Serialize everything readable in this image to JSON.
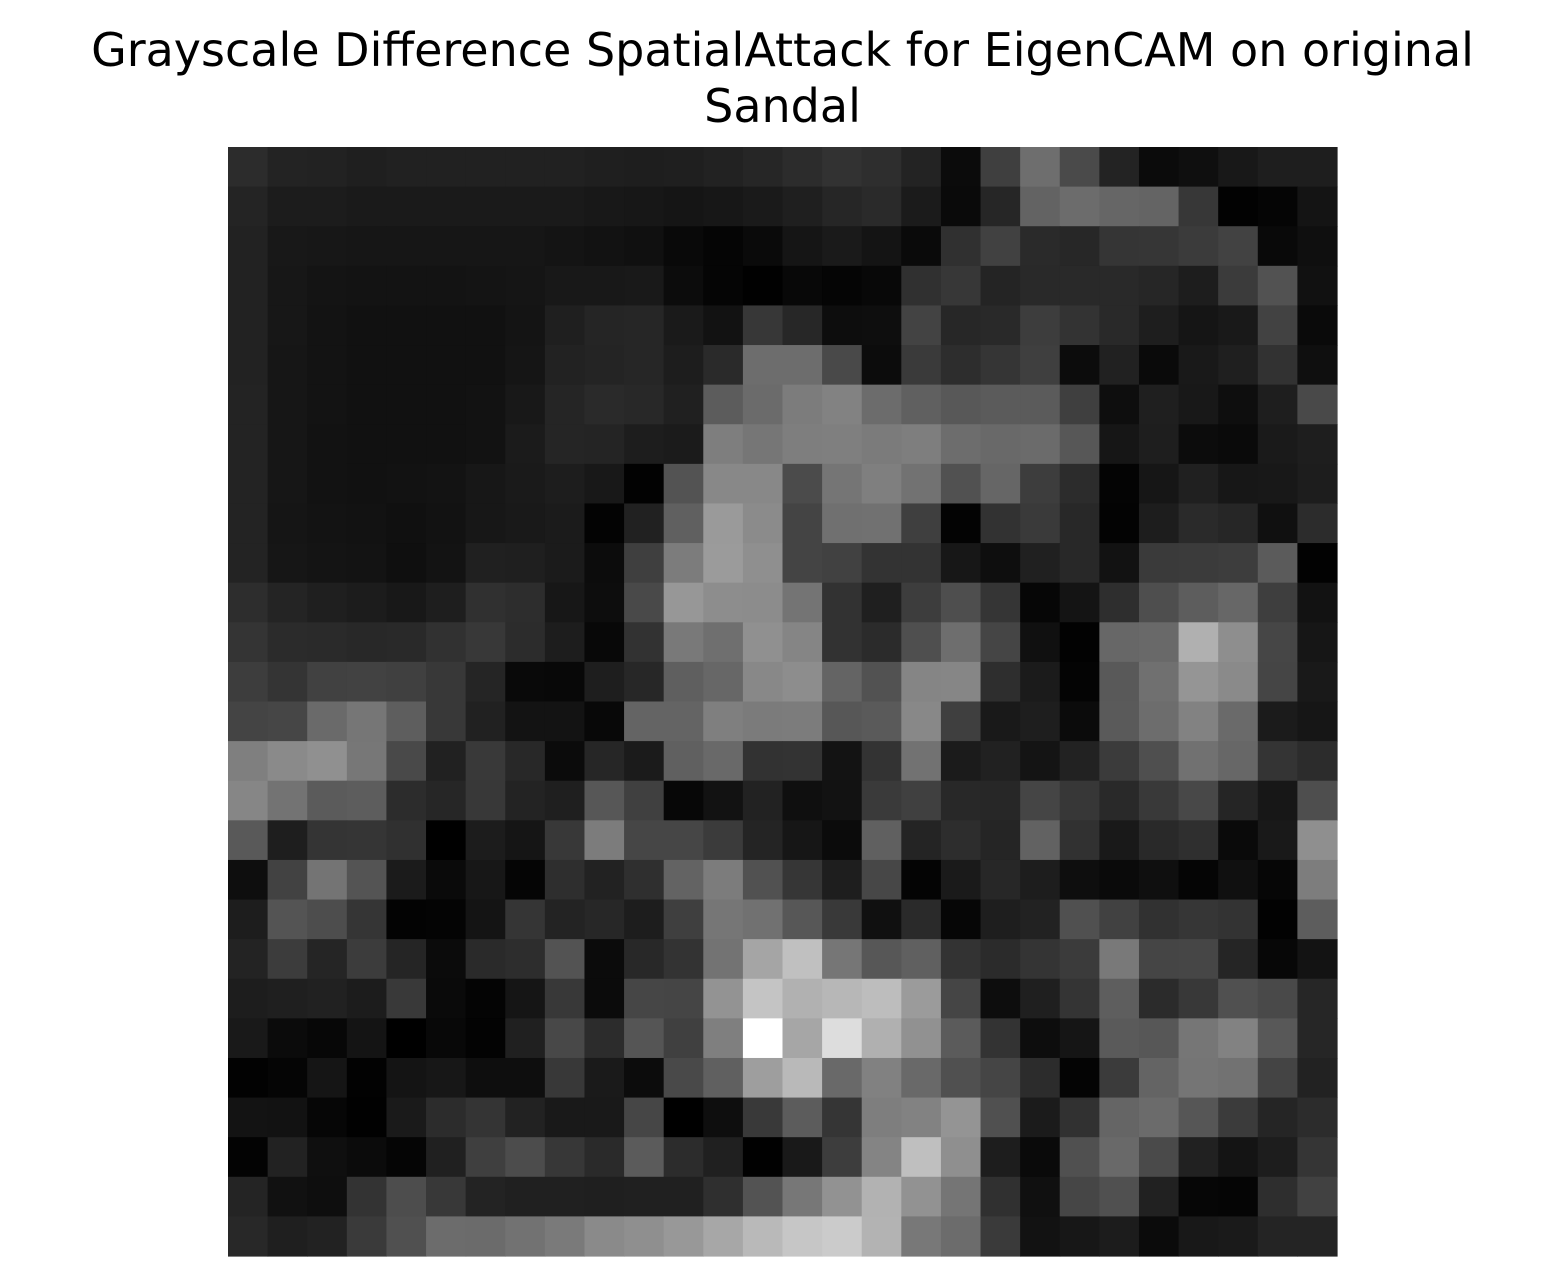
{
  "chart_data": {
    "type": "heatmap",
    "title_line1": "Grayscale Difference SpatialAttack for EigenCAM on original",
    "title_line2": "Sandal",
    "colormap": "gray",
    "axes": "off",
    "rows": 28,
    "cols": 28,
    "values": [
      [
        44,
        35,
        34,
        31,
        33,
        33,
        33,
        33,
        33,
        31,
        30,
        31,
        34,
        38,
        44,
        50,
        46,
        35,
        11,
        63,
        110,
        74,
        35,
        11,
        15,
        24,
        30,
        30
      ],
      [
        36,
        28,
        28,
        26,
        26,
        26,
        26,
        26,
        26,
        24,
        23,
        21,
        23,
        26,
        31,
        38,
        42,
        27,
        10,
        38,
        99,
        108,
        102,
        100,
        55,
        2,
        5,
        20
      ],
      [
        34,
        24,
        23,
        22,
        22,
        22,
        22,
        22,
        20,
        18,
        16,
        9,
        5,
        10,
        21,
        26,
        20,
        10,
        48,
        65,
        42,
        39,
        53,
        54,
        59,
        66,
        9,
        15
      ],
      [
        34,
        23,
        20,
        19,
        19,
        19,
        20,
        21,
        24,
        24,
        25,
        12,
        5,
        1,
        8,
        5,
        8,
        48,
        55,
        36,
        41,
        41,
        41,
        38,
        29,
        59,
        82,
        17
      ],
      [
        34,
        23,
        19,
        17,
        17,
        17,
        17,
        20,
        31,
        37,
        38,
        26,
        18,
        55,
        39,
        13,
        14,
        67,
        39,
        41,
        61,
        51,
        41,
        30,
        21,
        25,
        66,
        10
      ],
      [
        34,
        22,
        19,
        17,
        17,
        17,
        17,
        21,
        34,
        36,
        38,
        29,
        42,
        109,
        109,
        73,
        12,
        58,
        45,
        53,
        63,
        12,
        33,
        10,
        25,
        31,
        50,
        15
      ],
      [
        35,
        22,
        19,
        17,
        17,
        17,
        18,
        24,
        37,
        42,
        40,
        32,
        92,
        107,
        124,
        130,
        108,
        96,
        88,
        91,
        91,
        63,
        14,
        31,
        24,
        14,
        30,
        73
      ],
      [
        35,
        22,
        18,
        17,
        17,
        17,
        18,
        27,
        37,
        36,
        29,
        27,
        126,
        118,
        126,
        127,
        123,
        126,
        109,
        105,
        107,
        87,
        22,
        30,
        12,
        10,
        26,
        30
      ],
      [
        35,
        22,
        18,
        17,
        18,
        19,
        23,
        26,
        29,
        24,
        2,
        83,
        136,
        136,
        75,
        117,
        127,
        114,
        81,
        102,
        61,
        44,
        4,
        22,
        32,
        23,
        24,
        29
      ],
      [
        35,
        21,
        19,
        18,
        16,
        18,
        23,
        25,
        27,
        3,
        33,
        96,
        154,
        139,
        68,
        112,
        113,
        63,
        3,
        50,
        58,
        40,
        3,
        29,
        42,
        38,
        16,
        44
      ],
      [
        35,
        22,
        20,
        19,
        15,
        19,
        32,
        31,
        27,
        12,
        63,
        124,
        155,
        143,
        68,
        65,
        51,
        51,
        23,
        14,
        32,
        40,
        18,
        58,
        59,
        61,
        91,
        2
      ],
      [
        45,
        36,
        31,
        28,
        24,
        30,
        48,
        45,
        23,
        13,
        73,
        151,
        141,
        140,
        116,
        50,
        31,
        61,
        78,
        53,
        6,
        20,
        46,
        78,
        93,
        103,
        62,
        18
      ],
      [
        52,
        43,
        42,
        40,
        41,
        49,
        56,
        44,
        29,
        8,
        50,
        121,
        111,
        144,
        133,
        50,
        43,
        79,
        110,
        69,
        16,
        2,
        103,
        105,
        176,
        142,
        70,
        22
      ],
      [
        61,
        52,
        65,
        66,
        64,
        56,
        37,
        9,
        8,
        30,
        39,
        95,
        103,
        136,
        141,
        100,
        82,
        133,
        134,
        46,
        27,
        4,
        89,
        112,
        149,
        138,
        69,
        25
      ],
      [
        68,
        70,
        106,
        118,
        94,
        56,
        33,
        19,
        19,
        8,
        100,
        100,
        127,
        123,
        124,
        87,
        90,
        136,
        63,
        25,
        30,
        11,
        90,
        109,
        130,
        106,
        27,
        22
      ],
      [
        127,
        138,
        144,
        119,
        73,
        33,
        57,
        40,
        11,
        38,
        27,
        96,
        105,
        50,
        51,
        19,
        51,
        114,
        27,
        33,
        20,
        34,
        59,
        79,
        113,
        103,
        52,
        44
      ],
      [
        134,
        115,
        91,
        93,
        44,
        38,
        56,
        35,
        31,
        87,
        64,
        7,
        18,
        34,
        15,
        18,
        58,
        64,
        40,
        39,
        69,
        55,
        41,
        57,
        72,
        37,
        23,
        78
      ],
      [
        89,
        30,
        52,
        53,
        48,
        0,
        28,
        21,
        56,
        124,
        70,
        70,
        59,
        36,
        22,
        11,
        96,
        36,
        45,
        37,
        98,
        49,
        25,
        41,
        47,
        10,
        25,
        143
      ],
      [
        14,
        66,
        116,
        84,
        27,
        10,
        23,
        5,
        46,
        34,
        47,
        99,
        124,
        81,
        54,
        30,
        71,
        4,
        26,
        39,
        29,
        14,
        10,
        15,
        5,
        16,
        6,
        125
      ],
      [
        29,
        84,
        77,
        53,
        3,
        4,
        20,
        53,
        35,
        39,
        29,
        63,
        118,
        113,
        87,
        57,
        16,
        42,
        6,
        30,
        34,
        80,
        65,
        49,
        54,
        51,
        2,
        93
      ],
      [
        35,
        60,
        37,
        60,
        37,
        11,
        42,
        45,
        83,
        11,
        40,
        51,
        115,
        165,
        192,
        118,
        87,
        96,
        51,
        43,
        52,
        59,
        121,
        69,
        70,
        37,
        7,
        19
      ],
      [
        29,
        31,
        33,
        28,
        57,
        10,
        4,
        21,
        56,
        11,
        70,
        69,
        147,
        196,
        177,
        183,
        189,
        155,
        69,
        13,
        31,
        52,
        94,
        43,
        56,
        80,
        73,
        38
      ],
      [
        25,
        11,
        7,
        20,
        0,
        8,
        3,
        32,
        72,
        44,
        85,
        64,
        127,
        255,
        166,
        221,
        176,
        145,
        91,
        51,
        13,
        21,
        90,
        87,
        118,
        130,
        88,
        38
      ],
      [
        2,
        5,
        21,
        2,
        20,
        23,
        14,
        14,
        56,
        26,
        12,
        73,
        96,
        158,
        185,
        105,
        129,
        105,
        80,
        69,
        44,
        4,
        59,
        100,
        117,
        114,
        68,
        34
      ],
      [
        19,
        18,
        6,
        1,
        26,
        44,
        52,
        34,
        25,
        25,
        70,
        0,
        14,
        57,
        92,
        53,
        126,
        130,
        148,
        80,
        27,
        49,
        101,
        107,
        86,
        59,
        37,
        44
      ],
      [
        3,
        34,
        15,
        11,
        5,
        32,
        63,
        76,
        55,
        42,
        91,
        44,
        32,
        1,
        25,
        61,
        132,
        191,
        143,
        29,
        10,
        80,
        105,
        74,
        33,
        20,
        29,
        53
      ],
      [
        36,
        17,
        14,
        51,
        77,
        56,
        35,
        32,
        32,
        31,
        32,
        32,
        47,
        83,
        119,
        146,
        178,
        146,
        117,
        48,
        16,
        70,
        80,
        33,
        6,
        5,
        46,
        65
      ],
      [
        40,
        31,
        34,
        58,
        80,
        108,
        107,
        114,
        122,
        138,
        143,
        152,
        167,
        185,
        198,
        203,
        179,
        120,
        108,
        58,
        18,
        23,
        28,
        11,
        24,
        26,
        36,
        36
      ]
    ]
  }
}
